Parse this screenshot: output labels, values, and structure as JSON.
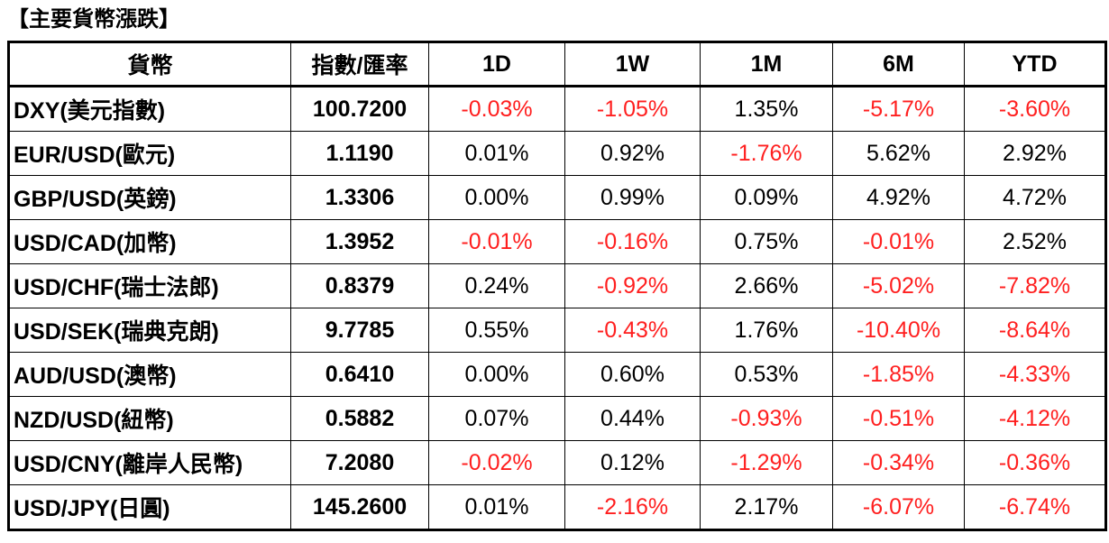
{
  "title": "【主要貨幣漲跌】",
  "columns": [
    "貨幣",
    "指數/匯率",
    "1D",
    "1W",
    "1M",
    "6M",
    "YTD"
  ],
  "rows": [
    {
      "name": "DXY(美元指數)",
      "value": "100.7200",
      "d1": "-0.03%",
      "w1": "-1.05%",
      "m1": "1.35%",
      "m6": "-5.17%",
      "ytd": "-3.60%"
    },
    {
      "name": "EUR/USD(歐元)",
      "value": "1.1190",
      "d1": "0.01%",
      "w1": "0.92%",
      "m1": "-1.76%",
      "m6": "5.62%",
      "ytd": "2.92%"
    },
    {
      "name": "GBP/USD(英鎊)",
      "value": "1.3306",
      "d1": "0.00%",
      "w1": "0.99%",
      "m1": "0.09%",
      "m6": "4.92%",
      "ytd": "4.72%"
    },
    {
      "name": "USD/CAD(加幣)",
      "value": "1.3952",
      "d1": "-0.01%",
      "w1": "-0.16%",
      "m1": "0.75%",
      "m6": "-0.01%",
      "ytd": "2.52%"
    },
    {
      "name": "USD/CHF(瑞士法郎)",
      "value": "0.8379",
      "d1": "0.24%",
      "w1": "-0.92%",
      "m1": "2.66%",
      "m6": "-5.02%",
      "ytd": "-7.82%"
    },
    {
      "name": "USD/SEK(瑞典克朗)",
      "value": "9.7785",
      "d1": "0.55%",
      "w1": "-0.43%",
      "m1": "1.76%",
      "m6": "-10.40%",
      "ytd": "-8.64%"
    },
    {
      "name": "AUD/USD(澳幣)",
      "value": "0.6410",
      "d1": "0.00%",
      "w1": "0.60%",
      "m1": "0.53%",
      "m6": "-1.85%",
      "ytd": "-4.33%"
    },
    {
      "name": "NZD/USD(紐幣)",
      "value": "0.5882",
      "d1": "0.07%",
      "w1": "0.44%",
      "m1": "-0.93%",
      "m6": "-0.51%",
      "ytd": "-4.12%"
    },
    {
      "name": "USD/CNY(離岸人民幣)",
      "value": "7.2080",
      "d1": "-0.02%",
      "w1": "0.12%",
      "m1": "-1.29%",
      "m6": "-0.34%",
      "ytd": "-0.36%"
    },
    {
      "name": "USD/JPY(日圓)",
      "value": "145.2600",
      "d1": "0.01%",
      "w1": "-2.16%",
      "m1": "2.17%",
      "m6": "-6.07%",
      "ytd": "-6.74%"
    }
  ],
  "colors": {
    "negative": "#ff1f1f",
    "text": "#000000",
    "border": "#000000"
  }
}
